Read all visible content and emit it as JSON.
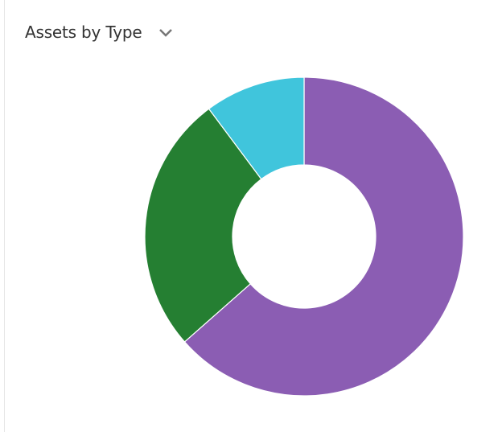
{
  "chart_data": {
    "type": "donut",
    "title": "Assets by Type",
    "values": [
      63.5,
      26.3,
      10.2
    ],
    "colors": [
      "#8b5db3",
      "#257f32",
      "#40c5dc"
    ]
  }
}
